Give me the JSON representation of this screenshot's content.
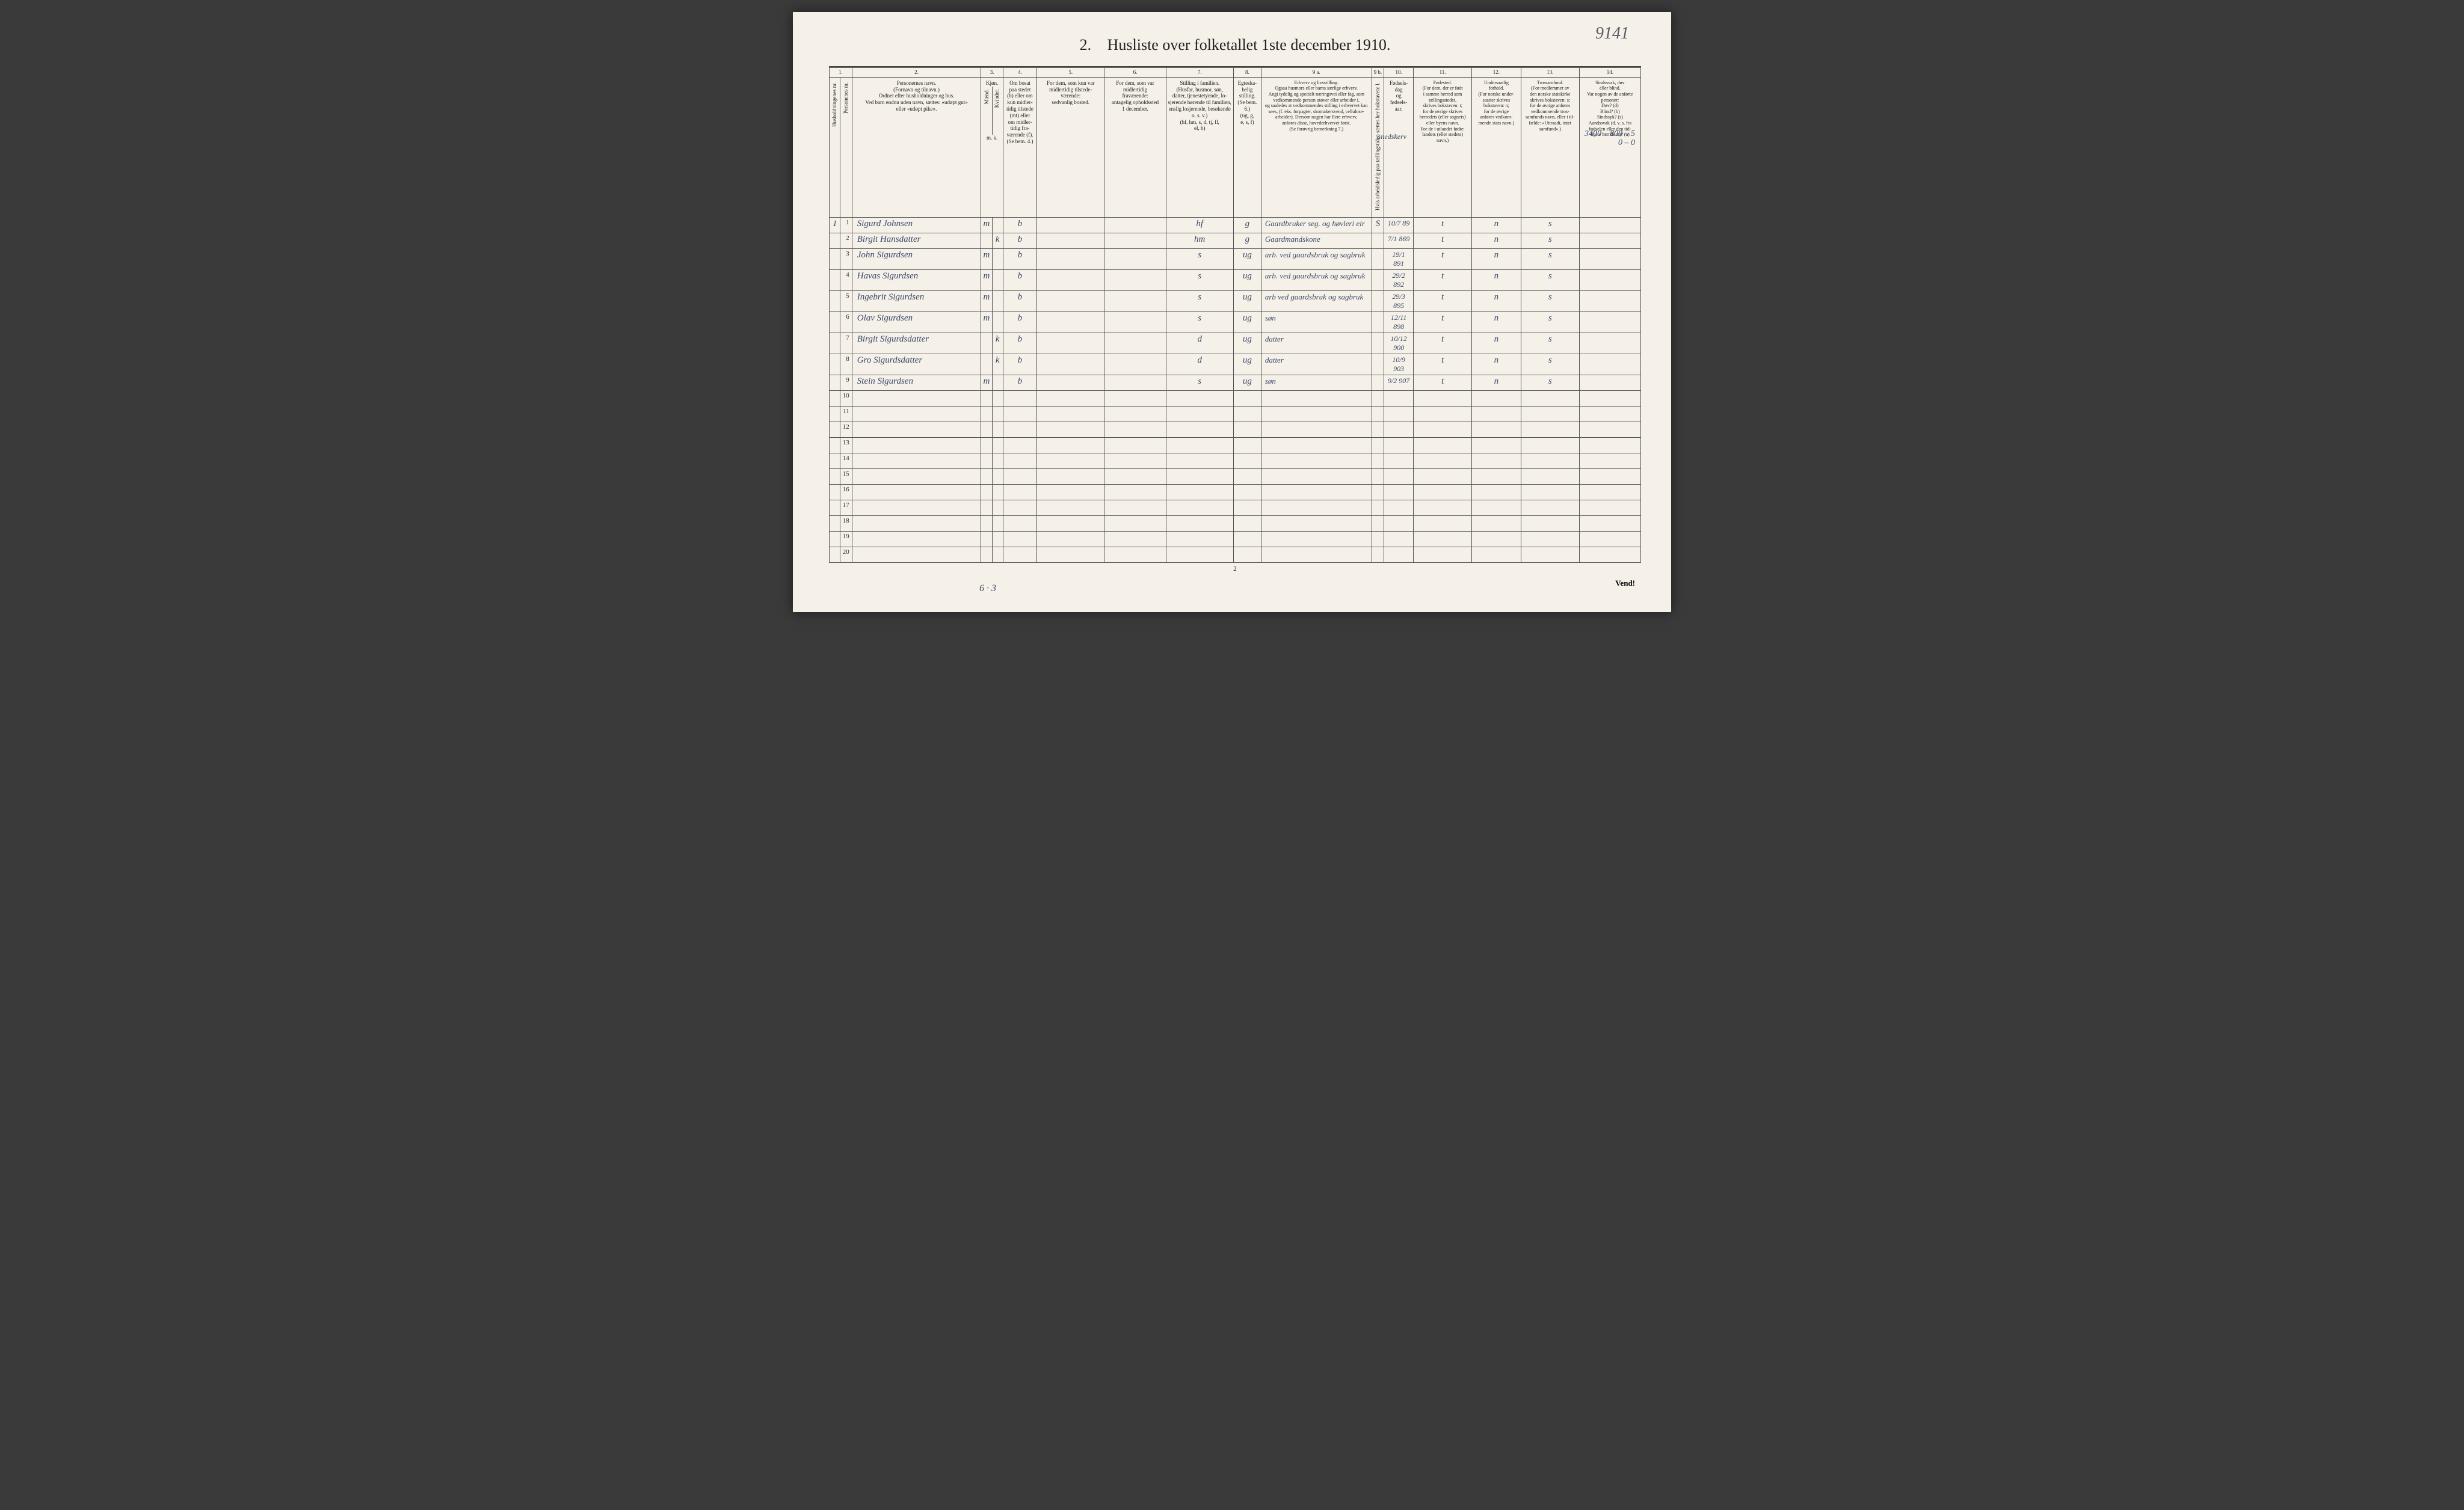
{
  "page_number_written": "9141",
  "title_num": "2.",
  "title": "Husliste over folketallet 1ste december 1910.",
  "annotation_top_line1": "3400 – 800 – 5",
  "annotation_top_line2": "0 – 0",
  "annotation_extra": "snedskerv",
  "footer_note": "6 · 3",
  "page_num_bottom": "2",
  "vend": "Vend!",
  "colnums": [
    "1.",
    "2.",
    "3.",
    "4.",
    "5.",
    "6.",
    "7.",
    "8.",
    "9 a.",
    "9 b.",
    "10.",
    "11.",
    "12.",
    "13.",
    "14."
  ],
  "headers": {
    "c1a": "Husholdningenes nr.",
    "c1b": "Personenes nr.",
    "c2": "Personernes navn.\n(Fornavn og tilnavn.)\nOrdnet efter husholdninger og hus.\nVed barn endnu uden navn, sættes: «udøpt gut»\neller «udøpt pike».",
    "c3": "Kjøn.",
    "c3m": "Mænd.",
    "c3k": "Kvinder.",
    "c3mk": "m.  k.",
    "c4": "Om bosat\npaa stedet\n(b) eller om\nkun midler-\ntidig tilstede\n(mt) eller\nom midler-\ntidig fra-\nværende (f).\n(Se bem. 4.)",
    "c5": "For dem, som kun var\nmidlertidig tilstede-\nværende:\nsedvanlig bosted.",
    "c6": "For dem, som var\nmidlertidig\nfraværende:\nantagelig opholdssted\n1 december.",
    "c7": "Stilling i familien.\n(Husfar, husmor, søn,\ndatter, tjenestetyende, lo-\nsjerende hørende til familien,\nenslig losjerende, besøkende\no. s. v.)\n(hf, hm, s, d, tj, fl,\nel, b)",
    "c8": "Egteska-\nbelig\nstilling.\n(Se bem. 6.)\n(ug, g,\ne, s, f)",
    "c9a": "Erhverv og livsstilling.\nOgsaa husmors eller barns særlige erhverv.\nAngi tydelig og specielt næringsvei eller fag, som\nvedkommende person utøver eller arbeider i,\nog saaledes at vedkommendes stilling i erhvervet kan\nsees, (f. eks. forpagter, skomakersvend, cellulose-\narbeider). Dersom nogen har flere erhverv,\nanføres disse, hovederhvervet først.\n(Se forøvrig bemerkning 7.)",
    "c9b": "Hvis arbeidsledig\npaa tællingstiden sættes\nher bokstaven: l.",
    "c10": "Fødsels-\ndag\nog\nfødsels-\naar.",
    "c11": "Fødested.\n(For dem, der er født\ni samme herred som\ntællingsstedet,\nskrives bokstaven: t;\nfor de øvrige skrives\nherredets (eller sognets)\neller byens navn.\nFor de i utlandet fødte:\nlandets (eller stedets)\nnavn.)",
    "c12": "Undersaatlig\nforhold.\n(For norske under-\nsaatter skrives\nbokstaven: n;\nfor de øvrige\nanføres vedkom-\nmende stats navn.)",
    "c13": "Trossamfund.\n(For medlemmer av\nden norske statskirke\nskrives bokstaven: s;\nfor de øvrige anføres\nvedkommende tros-\nsamfunds navn, eller i til-\nfælde: «Uttraadt, intet\nsamfund».)",
    "c14": "Sindssvak, døv\neller blind.\nVar nogen av de anførte\npersoner:\nDøv?       (d)\nBlind?     (b)\nSindssyk?  (s)\nAandssvak (d. v. s. fra\nfødselen eller den tid-\nligste barndom)? (a)"
  },
  "rows": [
    {
      "hh": "1",
      "pn": "1",
      "name": "Sigurd Johnsen",
      "m": "m",
      "k": "",
      "res": "b",
      "c5": "",
      "c6": "",
      "fam": "hf",
      "ms": "g",
      "occ": "Gaardbruker seg. og høvleri eir",
      "l": "S",
      "dob": "10/7 89",
      "bp": "t",
      "nat": "n",
      "rel": "s",
      "c14": ""
    },
    {
      "hh": "",
      "pn": "2",
      "name": "Birgit Hansdatter",
      "m": "",
      "k": "k",
      "res": "b",
      "c5": "",
      "c6": "",
      "fam": "hm",
      "ms": "g",
      "occ": "Gaardmandskone",
      "l": "",
      "dob": "7/1 869",
      "bp": "t",
      "nat": "n",
      "rel": "s",
      "c14": ""
    },
    {
      "hh": "",
      "pn": "3",
      "name": "John Sigurdsen",
      "m": "m",
      "k": "",
      "res": "b",
      "c5": "",
      "c6": "",
      "fam": "s",
      "ms": "ug",
      "occ": "arb. ved gaardsbruk og sagbruk",
      "l": "",
      "dob": "19/1 891",
      "bp": "t",
      "nat": "n",
      "rel": "s",
      "c14": ""
    },
    {
      "hh": "",
      "pn": "4",
      "name": "Havas Sigurdsen",
      "m": "m",
      "k": "",
      "res": "b",
      "c5": "",
      "c6": "",
      "fam": "s",
      "ms": "ug",
      "occ": "arb. ved gaardsbruk og sagbruk",
      "l": "",
      "dob": "29/2 892",
      "bp": "t",
      "nat": "n",
      "rel": "s",
      "c14": ""
    },
    {
      "hh": "",
      "pn": "5",
      "name": "Ingebrit Sigurdsen",
      "m": "m",
      "k": "",
      "res": "b",
      "c5": "",
      "c6": "",
      "fam": "s",
      "ms": "ug",
      "occ": "arb ved gaardsbruk og sagbruk",
      "l": "",
      "dob": "29/3 895",
      "bp": "t",
      "nat": "n",
      "rel": "s",
      "c14": ""
    },
    {
      "hh": "",
      "pn": "6",
      "name": "Olav Sigurdsen",
      "m": "m",
      "k": "",
      "res": "b",
      "c5": "",
      "c6": "",
      "fam": "s",
      "ms": "ug",
      "occ": "søn",
      "l": "",
      "dob": "12/11 898",
      "bp": "t",
      "nat": "n",
      "rel": "s",
      "c14": ""
    },
    {
      "hh": "",
      "pn": "7",
      "name": "Birgit Sigurdsdatter",
      "m": "",
      "k": "k",
      "res": "b",
      "c5": "",
      "c6": "",
      "fam": "d",
      "ms": "ug",
      "occ": "datter",
      "l": "",
      "dob": "10/12 900",
      "bp": "t",
      "nat": "n",
      "rel": "s",
      "c14": ""
    },
    {
      "hh": "",
      "pn": "8",
      "name": "Gro Sigurdsdatter",
      "m": "",
      "k": "k",
      "res": "b",
      "c5": "",
      "c6": "",
      "fam": "d",
      "ms": "ug",
      "occ": "datter",
      "l": "",
      "dob": "10/9 903",
      "bp": "t",
      "nat": "n",
      "rel": "s",
      "c14": ""
    },
    {
      "hh": "",
      "pn": "9",
      "name": "Stein Sigurdsen",
      "m": "m",
      "k": "",
      "res": "b",
      "c5": "",
      "c6": "",
      "fam": "s",
      "ms": "ug",
      "occ": "søn",
      "l": "",
      "dob": "9/2 907",
      "bp": "t",
      "nat": "n",
      "rel": "s",
      "c14": ""
    },
    {
      "hh": "",
      "pn": "10",
      "name": "",
      "m": "",
      "k": "",
      "res": "",
      "c5": "",
      "c6": "",
      "fam": "",
      "ms": "",
      "occ": "",
      "l": "",
      "dob": "",
      "bp": "",
      "nat": "",
      "rel": "",
      "c14": ""
    },
    {
      "hh": "",
      "pn": "11",
      "name": "",
      "m": "",
      "k": "",
      "res": "",
      "c5": "",
      "c6": "",
      "fam": "",
      "ms": "",
      "occ": "",
      "l": "",
      "dob": "",
      "bp": "",
      "nat": "",
      "rel": "",
      "c14": ""
    },
    {
      "hh": "",
      "pn": "12",
      "name": "",
      "m": "",
      "k": "",
      "res": "",
      "c5": "",
      "c6": "",
      "fam": "",
      "ms": "",
      "occ": "",
      "l": "",
      "dob": "",
      "bp": "",
      "nat": "",
      "rel": "",
      "c14": ""
    },
    {
      "hh": "",
      "pn": "13",
      "name": "",
      "m": "",
      "k": "",
      "res": "",
      "c5": "",
      "c6": "",
      "fam": "",
      "ms": "",
      "occ": "",
      "l": "",
      "dob": "",
      "bp": "",
      "nat": "",
      "rel": "",
      "c14": ""
    },
    {
      "hh": "",
      "pn": "14",
      "name": "",
      "m": "",
      "k": "",
      "res": "",
      "c5": "",
      "c6": "",
      "fam": "",
      "ms": "",
      "occ": "",
      "l": "",
      "dob": "",
      "bp": "",
      "nat": "",
      "rel": "",
      "c14": ""
    },
    {
      "hh": "",
      "pn": "15",
      "name": "",
      "m": "",
      "k": "",
      "res": "",
      "c5": "",
      "c6": "",
      "fam": "",
      "ms": "",
      "occ": "",
      "l": "",
      "dob": "",
      "bp": "",
      "nat": "",
      "rel": "",
      "c14": ""
    },
    {
      "hh": "",
      "pn": "16",
      "name": "",
      "m": "",
      "k": "",
      "res": "",
      "c5": "",
      "c6": "",
      "fam": "",
      "ms": "",
      "occ": "",
      "l": "",
      "dob": "",
      "bp": "",
      "nat": "",
      "rel": "",
      "c14": ""
    },
    {
      "hh": "",
      "pn": "17",
      "name": "",
      "m": "",
      "k": "",
      "res": "",
      "c5": "",
      "c6": "",
      "fam": "",
      "ms": "",
      "occ": "",
      "l": "",
      "dob": "",
      "bp": "",
      "nat": "",
      "rel": "",
      "c14": ""
    },
    {
      "hh": "",
      "pn": "18",
      "name": "",
      "m": "",
      "k": "",
      "res": "",
      "c5": "",
      "c6": "",
      "fam": "",
      "ms": "",
      "occ": "",
      "l": "",
      "dob": "",
      "bp": "",
      "nat": "",
      "rel": "",
      "c14": ""
    },
    {
      "hh": "",
      "pn": "19",
      "name": "",
      "m": "",
      "k": "",
      "res": "",
      "c5": "",
      "c6": "",
      "fam": "",
      "ms": "",
      "occ": "",
      "l": "",
      "dob": "",
      "bp": "",
      "nat": "",
      "rel": "",
      "c14": ""
    },
    {
      "hh": "",
      "pn": "20",
      "name": "",
      "m": "",
      "k": "",
      "res": "",
      "c5": "",
      "c6": "",
      "fam": "",
      "ms": "",
      "occ": "",
      "l": "",
      "dob": "",
      "bp": "",
      "nat": "",
      "rel": "",
      "c14": ""
    }
  ]
}
